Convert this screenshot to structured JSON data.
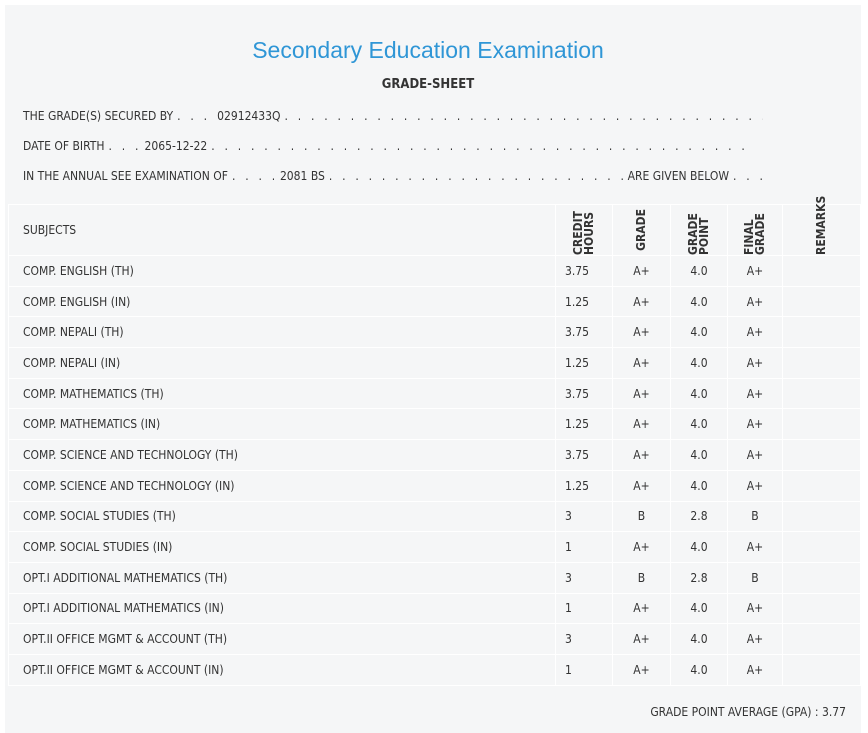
{
  "header": {
    "title": "Secondary Education Examination",
    "subtitle": "GRADE-SHEET"
  },
  "info": [
    {
      "label": "THE GRADE(S) SECURED BY",
      "value": "02912433Q"
    },
    {
      "label": "DATE OF BIRTH",
      "value": "2065-12-22"
    },
    {
      "label": "IN THE ANNUAL SEE EXAMINATION OF",
      "value": "2081 BS",
      "suffix": "ARE GIVEN BELOW"
    }
  ],
  "table": {
    "columns": [
      "SUBJECTS",
      "CREDIT HOURS",
      "GRADE",
      "GRADE POINT",
      "FINAL GRADE",
      "REMARKS"
    ],
    "rows": [
      [
        "COMP. ENGLISH (TH)",
        "3.75",
        "A+",
        "4.0",
        "A+"
      ],
      [
        "COMP. ENGLISH (IN)",
        "1.25",
        "A+",
        "4.0",
        "A+"
      ],
      [
        "COMP. NEPALI (TH)",
        "3.75",
        "A+",
        "4.0",
        "A+"
      ],
      [
        "COMP. NEPALI (IN)",
        "1.25",
        "A+",
        "4.0",
        "A+"
      ],
      [
        "COMP. MATHEMATICS (TH)",
        "3.75",
        "A+",
        "4.0",
        "A+"
      ],
      [
        "COMP. MATHEMATICS (IN)",
        "1.25",
        "A+",
        "4.0",
        "A+"
      ],
      [
        "COMP. SCIENCE AND TECHNOLOGY (TH)",
        "3.75",
        "A+",
        "4.0",
        "A+"
      ],
      [
        "COMP. SCIENCE AND TECHNOLOGY (IN)",
        "1.25",
        "A+",
        "4.0",
        "A+"
      ],
      [
        "COMP. SOCIAL STUDIES (TH)",
        "3",
        "B",
        "2.8",
        "B"
      ],
      [
        "COMP. SOCIAL STUDIES (IN)",
        "1",
        "A+",
        "4.0",
        "A+"
      ],
      [
        "OPT.I ADDITIONAL MATHEMATICS (TH)",
        "3",
        "B",
        "2.8",
        "B"
      ],
      [
        "OPT.I ADDITIONAL MATHEMATICS (IN)",
        "1",
        "A+",
        "4.0",
        "A+"
      ],
      [
        "OPT.II OFFICE MGMT & ACCOUNT (TH)",
        "3",
        "A+",
        "4.0",
        "A+"
      ],
      [
        "OPT.II OFFICE MGMT & ACCOUNT (IN)",
        "1",
        "A+",
        "4.0",
        "A+"
      ]
    ]
  },
  "gpa": {
    "label": "GRADE POINT AVERAGE (GPA) :",
    "value": "3.77"
  }
}
